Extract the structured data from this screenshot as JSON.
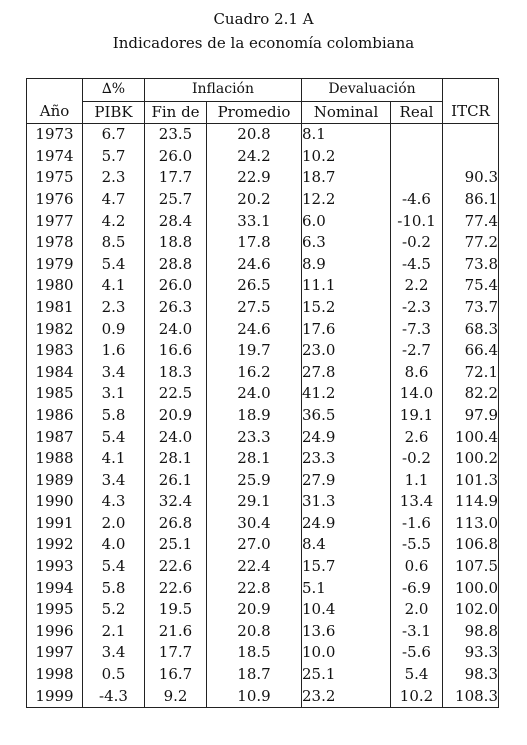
{
  "caption": {
    "line1": "Cuadro 2.1 A",
    "line2": "Indicadores de la economía colombiana"
  },
  "header": {
    "delta": "∆%",
    "inflacion": "Inflación",
    "devaluacion": "Devaluación",
    "ano": "Año",
    "pibk": "PIBK",
    "fin_de": "Fin de",
    "promedio": "Promedio",
    "nominal": "Nominal",
    "real": "Real",
    "itcr": "ITCR"
  },
  "rows": [
    {
      "ano": "1973",
      "pibk": "6.7",
      "fin": "23.5",
      "prom": "20.8",
      "nom": "8.1",
      "real": "",
      "itcr": ""
    },
    {
      "ano": "1974",
      "pibk": "5.7",
      "fin": "26.0",
      "prom": "24.2",
      "nom": "10.2",
      "real": "",
      "itcr": ""
    },
    {
      "ano": "1975",
      "pibk": "2.3",
      "fin": "17.7",
      "prom": "22.9",
      "nom": "18.7",
      "real": "",
      "itcr": "90.3"
    },
    {
      "ano": "1976",
      "pibk": "4.7",
      "fin": "25.7",
      "prom": "20.2",
      "nom": "12.2",
      "real": "-4.6",
      "itcr": "86.1"
    },
    {
      "ano": "1977",
      "pibk": "4.2",
      "fin": "28.4",
      "prom": "33.1",
      "nom": "6.0",
      "real": "-10.1",
      "itcr": "77.4"
    },
    {
      "ano": "1978",
      "pibk": "8.5",
      "fin": "18.8",
      "prom": "17.8",
      "nom": "6.3",
      "real": "-0.2",
      "itcr": "77.2"
    },
    {
      "ano": "1979",
      "pibk": "5.4",
      "fin": "28.8",
      "prom": "24.6",
      "nom": "8.9",
      "real": "-4.5",
      "itcr": "73.8"
    },
    {
      "ano": "1980",
      "pibk": "4.1",
      "fin": "26.0",
      "prom": "26.5",
      "nom": "11.1",
      "real": "2.2",
      "itcr": "75.4"
    },
    {
      "ano": "1981",
      "pibk": "2.3",
      "fin": "26.3",
      "prom": "27.5",
      "nom": "15.2",
      "real": "-2.3",
      "itcr": "73.7"
    },
    {
      "ano": "1982",
      "pibk": "0.9",
      "fin": "24.0",
      "prom": "24.6",
      "nom": "17.6",
      "real": "-7.3",
      "itcr": "68.3"
    },
    {
      "ano": "1983",
      "pibk": "1.6",
      "fin": "16.6",
      "prom": "19.7",
      "nom": "23.0",
      "real": "-2.7",
      "itcr": "66.4"
    },
    {
      "ano": "1984",
      "pibk": "3.4",
      "fin": "18.3",
      "prom": "16.2",
      "nom": "27.8",
      "real": "8.6",
      "itcr": "72.1"
    },
    {
      "ano": "1985",
      "pibk": "3.1",
      "fin": "22.5",
      "prom": "24.0",
      "nom": "41.2",
      "real": "14.0",
      "itcr": "82.2"
    },
    {
      "ano": "1986",
      "pibk": "5.8",
      "fin": "20.9",
      "prom": "18.9",
      "nom": "36.5",
      "real": "19.1",
      "itcr": "97.9"
    },
    {
      "ano": "1987",
      "pibk": "5.4",
      "fin": "24.0",
      "prom": "23.3",
      "nom": "24.9",
      "real": "2.6",
      "itcr": "100.4"
    },
    {
      "ano": "1988",
      "pibk": "4.1",
      "fin": "28.1",
      "prom": "28.1",
      "nom": "23.3",
      "real": "-0.2",
      "itcr": "100.2"
    },
    {
      "ano": "1989",
      "pibk": "3.4",
      "fin": "26.1",
      "prom": "25.9",
      "nom": "27.9",
      "real": "1.1",
      "itcr": "101.3"
    },
    {
      "ano": "1990",
      "pibk": "4.3",
      "fin": "32.4",
      "prom": "29.1",
      "nom": "31.3",
      "real": "13.4",
      "itcr": "114.9"
    },
    {
      "ano": "1991",
      "pibk": "2.0",
      "fin": "26.8",
      "prom": "30.4",
      "nom": "24.9",
      "real": "-1.6",
      "itcr": "113.0"
    },
    {
      "ano": "1992",
      "pibk": "4.0",
      "fin": "25.1",
      "prom": "27.0",
      "nom": "8.4",
      "real": "-5.5",
      "itcr": "106.8"
    },
    {
      "ano": "1993",
      "pibk": "5.4",
      "fin": "22.6",
      "prom": "22.4",
      "nom": "15.7",
      "real": "0.6",
      "itcr": "107.5"
    },
    {
      "ano": "1994",
      "pibk": "5.8",
      "fin": "22.6",
      "prom": "22.8",
      "nom": "5.1",
      "real": "-6.9",
      "itcr": "100.0"
    },
    {
      "ano": "1995",
      "pibk": "5.2",
      "fin": "19.5",
      "prom": "20.9",
      "nom": "10.4",
      "real": "2.0",
      "itcr": "102.0"
    },
    {
      "ano": "1996",
      "pibk": "2.1",
      "fin": "21.6",
      "prom": "20.8",
      "nom": "13.6",
      "real": "-3.1",
      "itcr": "98.8"
    },
    {
      "ano": "1997",
      "pibk": "3.4",
      "fin": "17.7",
      "prom": "18.5",
      "nom": "10.0",
      "real": "-5.6",
      "itcr": "93.3"
    },
    {
      "ano": "1998",
      "pibk": "0.5",
      "fin": "16.7",
      "prom": "18.7",
      "nom": "25.1",
      "real": "5.4",
      "itcr": "98.3"
    },
    {
      "ano": "1999",
      "pibk": "-4.3",
      "fin": "9.2",
      "prom": "10.9",
      "nom": "23.2",
      "real": "10.2",
      "itcr": "108.3"
    }
  ]
}
